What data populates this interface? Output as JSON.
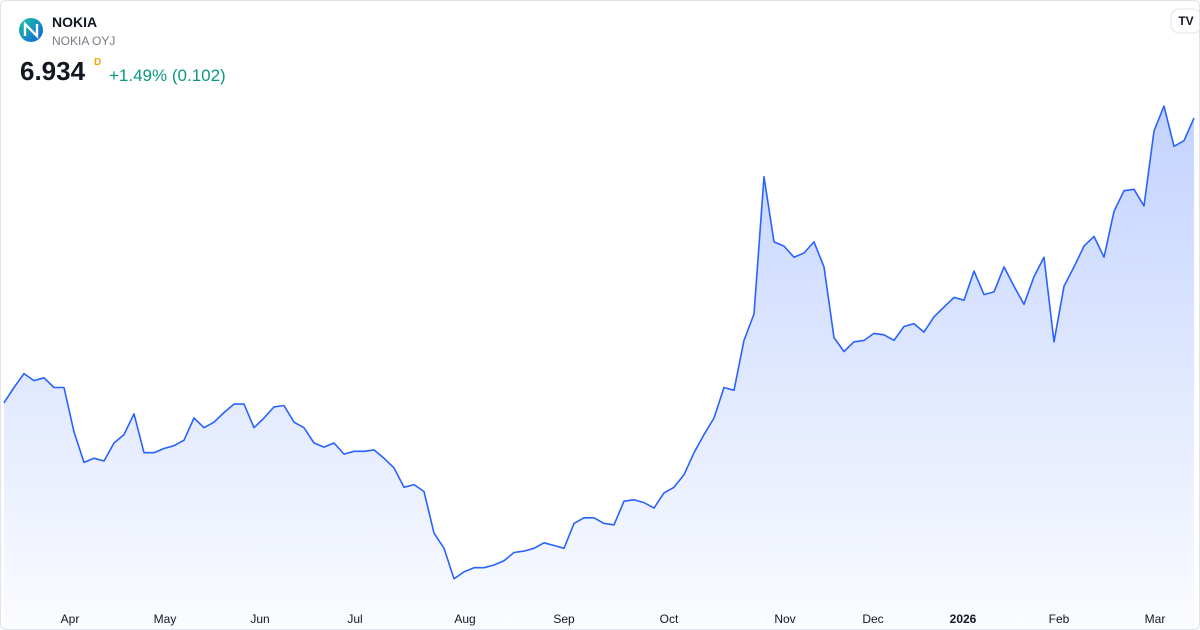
{
  "header": {
    "symbol": "NOKIA",
    "name": "NOKIA OYJ",
    "price": 6.934,
    "interval": "D",
    "change": "+1.49% (0.102)"
  },
  "chart_data": {
    "type": "area",
    "color": "#2962ff",
    "xlim": [
      0,
      119
    ],
    "ylim": [
      3.45,
      7.1
    ],
    "xticks": [
      {
        "value": 6.6,
        "label": "Apr"
      },
      {
        "value": 16.1,
        "label": "May"
      },
      {
        "value": 25.6,
        "label": "Jun"
      },
      {
        "value": 35.1,
        "label": "Jul"
      },
      {
        "value": 46.1,
        "label": "Aug"
      },
      {
        "value": 56,
        "label": "Sep"
      },
      {
        "value": 66.5,
        "label": "Oct"
      },
      {
        "value": 78.1,
        "label": "Nov"
      },
      {
        "value": 86.9,
        "label": "Dec"
      },
      {
        "value": 95.9,
        "label": "2026"
      },
      {
        "value": 105.5,
        "label": "Feb"
      },
      {
        "value": 115.1,
        "label": "Mar"
      }
    ],
    "values": [
      4.88,
      4.99,
      5.09,
      5.04,
      5.06,
      4.99,
      4.99,
      4.67,
      4.45,
      4.48,
      4.46,
      4.59,
      4.65,
      4.8,
      4.52,
      4.52,
      4.55,
      4.57,
      4.61,
      4.77,
      4.7,
      4.74,
      4.81,
      4.87,
      4.87,
      4.7,
      4.77,
      4.85,
      4.86,
      4.74,
      4.7,
      4.59,
      4.56,
      4.59,
      4.51,
      4.53,
      4.53,
      4.54,
      4.48,
      4.41,
      4.27,
      4.29,
      4.24,
      3.94,
      3.83,
      3.61,
      3.66,
      3.69,
      3.69,
      3.71,
      3.74,
      3.8,
      3.81,
      3.83,
      3.87,
      3.85,
      3.83,
      4.01,
      4.05,
      4.05,
      4.01,
      4.0,
      4.17,
      4.18,
      4.16,
      4.12,
      4.23,
      4.27,
      4.36,
      4.52,
      4.65,
      4.77,
      4.99,
      4.97,
      5.33,
      5.52,
      6.51,
      6.04,
      6.01,
      5.93,
      5.96,
      6.04,
      5.86,
      5.35,
      5.25,
      5.32,
      5.33,
      5.38,
      5.37,
      5.33,
      5.43,
      5.45,
      5.39,
      5.5,
      5.57,
      5.64,
      5.62,
      5.83,
      5.66,
      5.68,
      5.86,
      5.72,
      5.59,
      5.79,
      5.93,
      5.32,
      5.72,
      5.86,
      6.01,
      6.08,
      5.93,
      6.26,
      6.41,
      6.42,
      6.3,
      6.84,
      7.02,
      6.73,
      6.77,
      6.934
    ]
  }
}
